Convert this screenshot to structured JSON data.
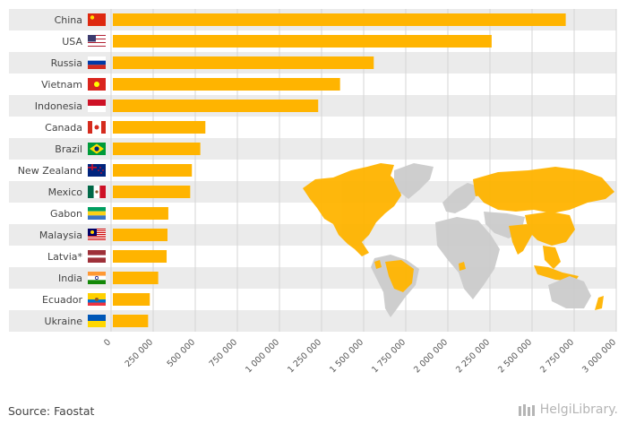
{
  "chart_data": {
    "type": "bar",
    "orientation": "horizontal",
    "categories": [
      "China",
      "USA",
      "Russia",
      "Vietnam",
      "Indonesia",
      "Canada",
      "Brazil",
      "New Zealand",
      "Mexico",
      "Gabon",
      "Malaysia",
      "Latvia*",
      "India",
      "Ecuador",
      "Ukraine"
    ],
    "values": [
      2700000,
      2260000,
      1560000,
      1360000,
      1230000,
      560000,
      530000,
      480000,
      470000,
      340000,
      335000,
      330000,
      280000,
      230000,
      220000
    ],
    "xlim": [
      0,
      3000000
    ],
    "xticks": [
      "0",
      "250 000",
      "500 000",
      "750 000",
      "1 000 000",
      "1 250 000",
      "1 500 000",
      "1 750 000",
      "2 000 000",
      "2 250 000",
      "2 500 000",
      "2 750 000",
      "3 000 000"
    ],
    "grid": true,
    "colors": {
      "bar": "#FFB400",
      "band": "#EBEBEB",
      "grid": "#D6D6D6",
      "map_highlight": "#FFB400",
      "map_other": "#CCCCCC"
    },
    "flags": [
      "flag-china-icon",
      "flag-usa-icon",
      "flag-russia-icon",
      "flag-vietnam-icon",
      "flag-indonesia-icon",
      "flag-canada-icon",
      "flag-brazil-icon",
      "flag-new-zealand-icon",
      "flag-mexico-icon",
      "flag-gabon-icon",
      "flag-malaysia-icon",
      "flag-latvia-icon",
      "flag-india-icon",
      "flag-ecuador-icon",
      "flag-ukraine-icon"
    ]
  },
  "footer": {
    "source": "Source: Faostat",
    "brand": "HelgiLibrary."
  }
}
